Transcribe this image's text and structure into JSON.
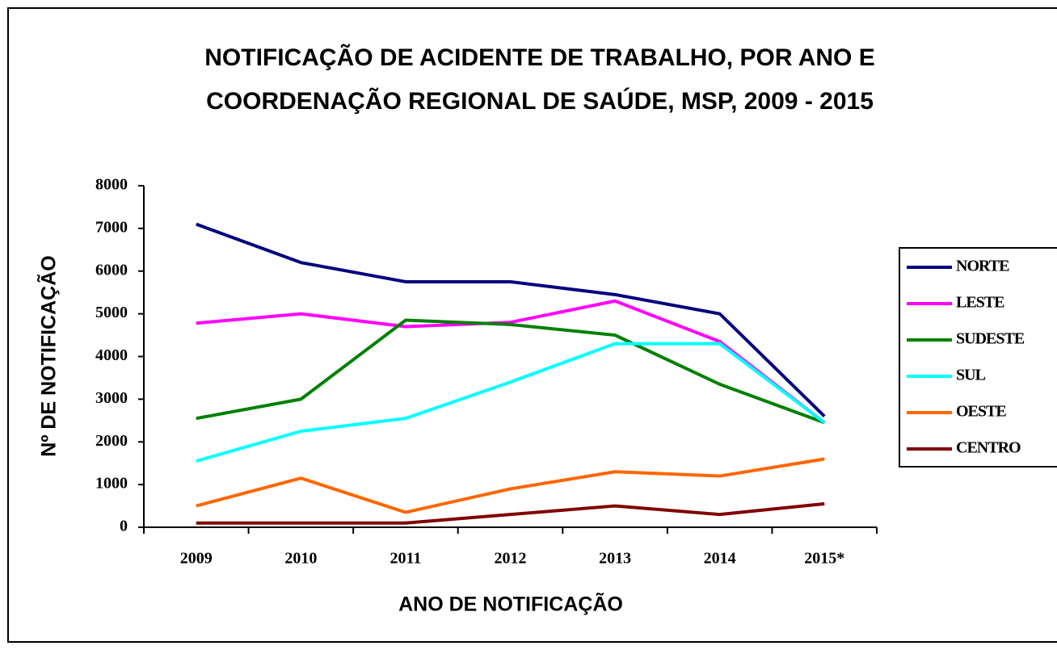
{
  "chart_data": {
    "type": "line",
    "title": "NOTIFICAÇÃO DE ACIDENTE DE TRABALHO, POR ANO E",
    "subtitle": "COORDENAÇÃO REGIONAL DE SAÚDE, MSP, 2009 - 2015",
    "x_label": "ANO DE NOTIFICAÇÃO",
    "y_label": "Nº DE NOTIFICAÇÃO",
    "categories": [
      "2009",
      "2010",
      "2011",
      "2012",
      "2013",
      "2014",
      "2015*"
    ],
    "series": [
      {
        "name": "NORTE",
        "color": "#000080",
        "values": [
          7100,
          6200,
          5750,
          5750,
          5450,
          5000,
          2600
        ]
      },
      {
        "name": "LESTE",
        "color": "#ff00ff",
        "values": [
          4780,
          5000,
          4700,
          4800,
          5300,
          4350,
          2450
        ]
      },
      {
        "name": "SUDESTE",
        "color": "#008000",
        "values": [
          2550,
          3000,
          4850,
          4750,
          4500,
          3350,
          2450
        ]
      },
      {
        "name": "SUL",
        "color": "#00ffff",
        "values": [
          1550,
          2250,
          2550,
          3400,
          4300,
          4300,
          2450
        ]
      },
      {
        "name": "OESTE",
        "color": "#ff6600",
        "values": [
          500,
          1150,
          350,
          900,
          1300,
          1200,
          1600
        ]
      },
      {
        "name": "CENTRO",
        "color": "#800000",
        "values": [
          100,
          100,
          100,
          300,
          500,
          300,
          550
        ]
      }
    ],
    "ylim": [
      0,
      8000
    ],
    "yticks": [
      0,
      1000,
      2000,
      3000,
      4000,
      5000,
      6000,
      7000,
      8000
    ],
    "grid": false,
    "legend": "right"
  }
}
